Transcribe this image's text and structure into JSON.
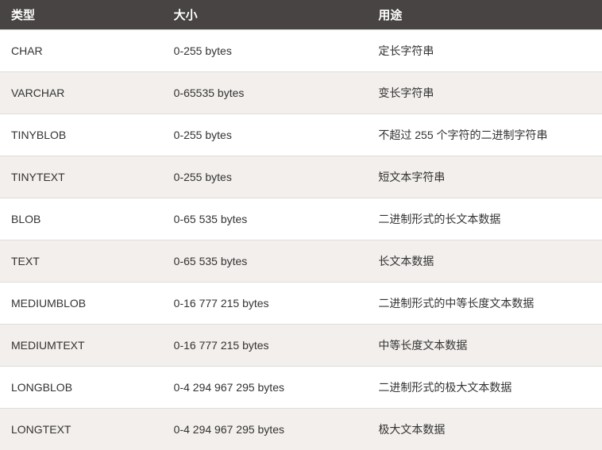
{
  "table": {
    "colors": {
      "header_bg": "#474443",
      "header_fg": "#ffffff",
      "row_odd_bg": "#ffffff",
      "row_even_bg": "#f2efec",
      "border": "#e0ddd9",
      "text": "#333333"
    },
    "font_sizes": {
      "header": 15,
      "body": 14
    },
    "column_widths_pct": [
      27,
      34,
      39
    ],
    "columns": [
      "类型",
      "大小",
      "用途"
    ],
    "rows": [
      [
        "CHAR",
        "0-255 bytes",
        "定长字符串"
      ],
      [
        "VARCHAR",
        "0-65535 bytes",
        "变长字符串"
      ],
      [
        "TINYBLOB",
        "0-255 bytes",
        "不超过 255 个字符的二进制字符串"
      ],
      [
        "TINYTEXT",
        "0-255 bytes",
        "短文本字符串"
      ],
      [
        "BLOB",
        "0-65 535 bytes",
        "二进制形式的长文本数据"
      ],
      [
        "TEXT",
        "0-65 535 bytes",
        "长文本数据"
      ],
      [
        "MEDIUMBLOB",
        "0-16 777 215 bytes",
        "二进制形式的中等长度文本数据"
      ],
      [
        "MEDIUMTEXT",
        "0-16 777 215 bytes",
        "中等长度文本数据"
      ],
      [
        "LONGBLOB",
        "0-4 294 967 295 bytes",
        "二进制形式的极大文本数据"
      ],
      [
        "LONGTEXT",
        "0-4 294 967 295 bytes",
        "极大文本数据"
      ]
    ]
  }
}
